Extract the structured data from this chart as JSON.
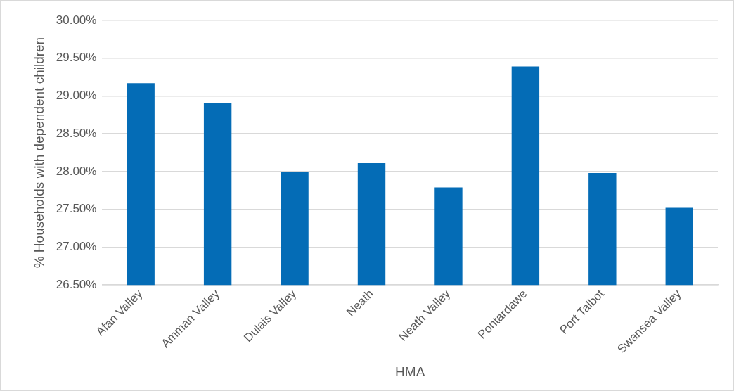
{
  "chart_data": {
    "type": "bar",
    "xlabel": "HMA",
    "ylabel": "% Households with dependent children",
    "categories": [
      "Afan Valley",
      "Amman Valley",
      "Dulais Valley",
      "Neath",
      "Neath Valley",
      "Pontardawe",
      "Port Talbot",
      "Swansea Valley"
    ],
    "values": [
      29.17,
      28.91,
      28.0,
      28.11,
      27.79,
      29.39,
      27.98,
      27.52
    ],
    "color": "#046cb6",
    "ylim": [
      26.5,
      30
    ],
    "yticks": [
      {
        "value": 26.5,
        "label": "26.50%"
      },
      {
        "value": 27,
        "label": "27.00%"
      },
      {
        "value": 27.5,
        "label": "27.50%"
      },
      {
        "value": 28,
        "label": "28.00%"
      },
      {
        "value": 28.5,
        "label": "28.50%"
      },
      {
        "value": 29,
        "label": "29.00%"
      },
      {
        "value": 29.5,
        "label": "29.50%"
      },
      {
        "value": 30,
        "label": "30.00%"
      }
    ],
    "grid": "y",
    "legend": false
  }
}
